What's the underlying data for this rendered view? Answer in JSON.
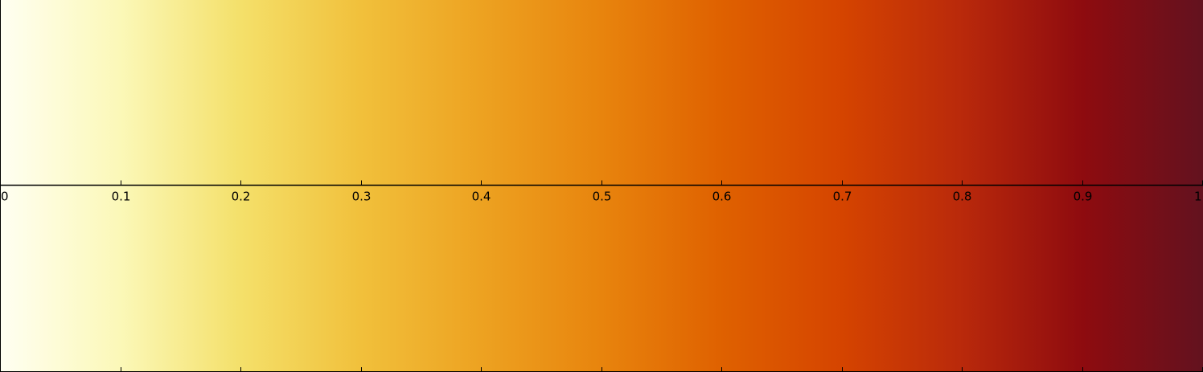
{
  "chart_data": {
    "type": "heatmap",
    "colormap_stops": [
      "#fffff2",
      "#fbf8b8",
      "#f4e06a",
      "#f1c03b",
      "#eda221",
      "#e8840d",
      "#df6100",
      "#d54400",
      "#b9290b",
      "#8e0b0f",
      "#63121f"
    ],
    "stop_positions": [
      0,
      0.1,
      0.2,
      0.3,
      0.4,
      0.5,
      0.6,
      0.7,
      0.8,
      0.9,
      1
    ],
    "xlim": [
      0,
      1
    ],
    "ticks": [
      0,
      0.1,
      0.2,
      0.3,
      0.4,
      0.5,
      0.6,
      0.7,
      0.8,
      0.9,
      1
    ],
    "tick_labels": [
      "0",
      "0.1",
      "0.2",
      "0.3",
      "0.4",
      "0.5",
      "0.6",
      "0.7",
      "0.8",
      "0.9",
      "1"
    ],
    "axis_color": "#000000",
    "grid": false
  }
}
